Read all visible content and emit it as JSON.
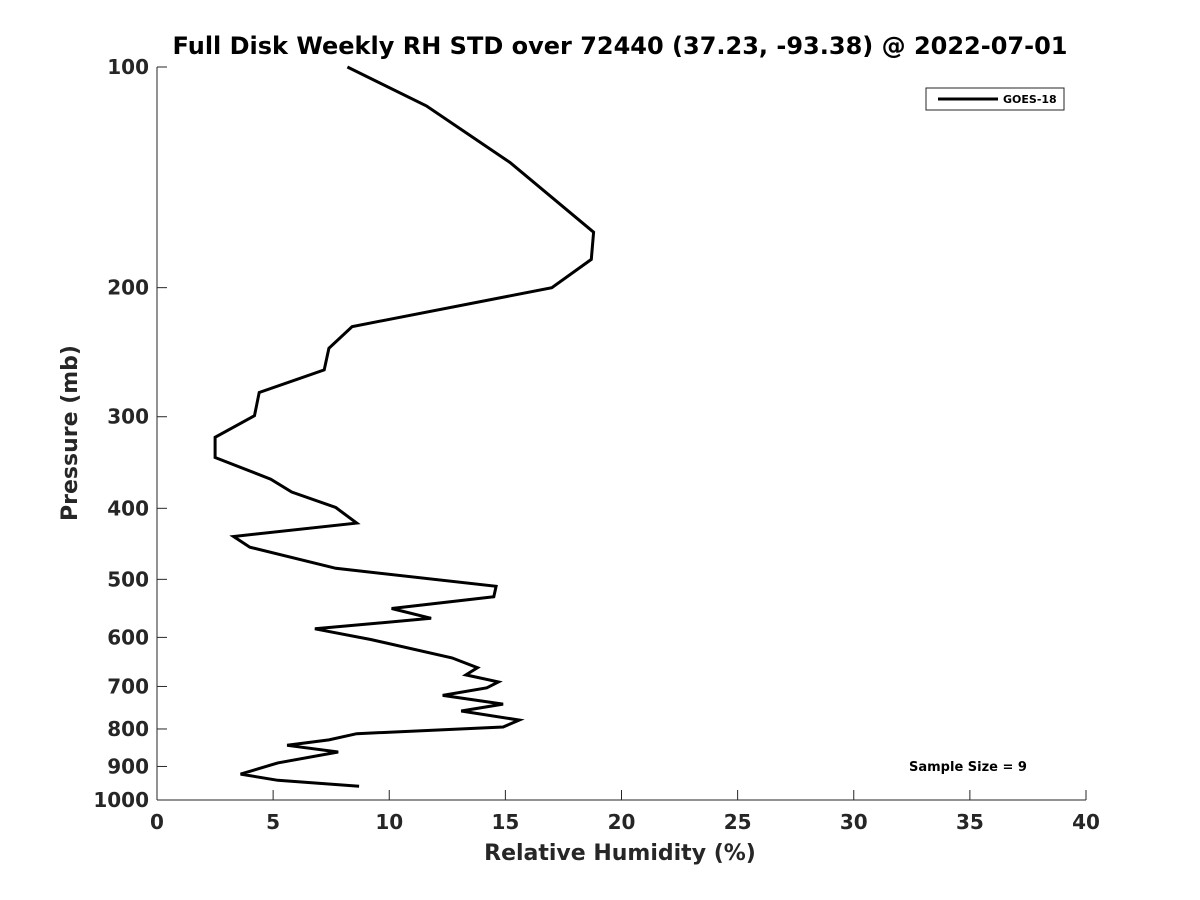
{
  "chart_data": {
    "type": "line",
    "title": "Full Disk Weekly RH STD over 72440 (37.23, -93.38) @ 2022-07-01",
    "xlabel": "Relative Humidity (%)",
    "ylabel": "Pressure (mb)",
    "xlim": [
      0,
      40
    ],
    "ylim": [
      100,
      1000
    ],
    "y_scale": "log",
    "y_direction": "reversed",
    "grid": false,
    "x_ticks": [
      0,
      5,
      10,
      15,
      20,
      25,
      30,
      35,
      40
    ],
    "x_tick_labels": [
      "0",
      "5",
      "10",
      "15",
      "20",
      "25",
      "30",
      "35",
      "40"
    ],
    "y_ticks": [
      100,
      200,
      300,
      400,
      500,
      600,
      700,
      800,
      900,
      1000
    ],
    "y_tick_labels": [
      "100",
      "200",
      "300",
      "400",
      "500",
      "600",
      "700",
      "800",
      "900",
      "1000"
    ],
    "legend": {
      "position": "top-right",
      "entries": [
        "GOES-18"
      ]
    },
    "annotation": "Sample Size = 9",
    "series": [
      {
        "name": "GOES-18",
        "color": "#000000",
        "x": [
          8.2,
          11.6,
          15.2,
          18.8,
          18.7,
          17.0,
          8.4,
          7.4,
          7.2,
          4.4,
          4.2,
          2.5,
          2.5,
          4.9,
          5.8,
          7.7,
          8.6,
          3.3,
          4.0,
          7.7,
          14.6,
          14.5,
          10.1,
          11.8,
          6.8,
          9.2,
          12.7,
          13.8,
          13.3,
          14.7,
          14.2,
          12.3,
          14.9,
          13.1,
          15.6,
          14.9,
          8.6,
          7.4,
          5.6,
          7.8,
          5.2,
          3.6,
          5.2,
          8.7
        ],
        "y": [
          100,
          113,
          135,
          168,
          183,
          200,
          226,
          242,
          259,
          278,
          299,
          320,
          341,
          365,
          380,
          399,
          419,
          437,
          452,
          483,
          511,
          528,
          548,
          565,
          584,
          604,
          640,
          660,
          675,
          690,
          703,
          720,
          740,
          756,
          778,
          795,
          812,
          828,
          842,
          860,
          890,
          922,
          940,
          958
        ]
      }
    ]
  }
}
